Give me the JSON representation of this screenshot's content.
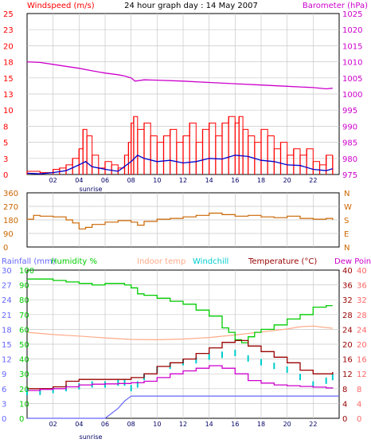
{
  "title": "24 hour graph day : 14 May 2007",
  "sunrise_label": "sunrise",
  "colors": {
    "wind_gust": "#ff0000",
    "wind_avg": "#0000cc",
    "barometer": "#cc00cc",
    "wind_dir": "#cc6600",
    "rain": "#6666ff",
    "humidity": "#00cc00",
    "indoor": "#ffaa88",
    "windchill": "#00cccc",
    "temperature": "#990000",
    "dewpoint": "#cc00cc"
  },
  "chart_data": [
    {
      "type": "line",
      "left_label": "Windspeed (m/s)",
      "right_label": "Barometer (hPa)",
      "left_ticks": [
        "25",
        "23",
        "20",
        "18",
        "15",
        "13",
        "10",
        "8",
        "5",
        "3",
        "0"
      ],
      "right_ticks": [
        "1025",
        "1020",
        "1015",
        "1010",
        "1005",
        "1000",
        "995",
        "990",
        "985",
        "980",
        "975"
      ],
      "x_ticks": [
        "02",
        "04",
        "06",
        "08",
        "10",
        "12",
        "14",
        "16",
        "18",
        "20",
        "22"
      ],
      "x_range": [
        0,
        24
      ],
      "ylim_left": [
        0,
        25
      ],
      "ylim_right": [
        975,
        1025
      ],
      "series": [
        {
          "name": "Wind gust",
          "axis": "left",
          "x": [
            0,
            1,
            2,
            2.5,
            3,
            3.5,
            4,
            4.3,
            4.6,
            5,
            5.5,
            6,
            6.5,
            7,
            7.5,
            7.8,
            8,
            8.2,
            8.5,
            9,
            9.5,
            10,
            10.5,
            11,
            11.5,
            12,
            12.5,
            13,
            13.5,
            14,
            14.5,
            15,
            15.5,
            16,
            16.3,
            16.6,
            17,
            17.5,
            18,
            18.5,
            19,
            19.5,
            20,
            20.5,
            21,
            21.5,
            22,
            22.5,
            23,
            23.5
          ],
          "values": [
            0.5,
            0.3,
            0.8,
            1,
            1.5,
            2.5,
            4,
            7,
            6,
            3,
            1,
            2,
            1.5,
            1,
            3,
            5,
            8,
            9,
            7,
            8,
            6,
            5,
            6,
            7,
            5,
            6,
            8,
            5,
            7,
            8,
            6,
            8,
            9,
            8,
            9,
            7,
            6,
            5,
            7,
            6,
            4,
            5,
            3,
            4,
            3,
            4,
            2,
            1.5,
            3,
            3
          ]
        },
        {
          "name": "Wind average",
          "axis": "left",
          "x": [
            0,
            1,
            2,
            3,
            4,
            4.5,
            5,
            6,
            7,
            8,
            8.5,
            9,
            10,
            11,
            12,
            13,
            14,
            15,
            16,
            17,
            18,
            19,
            20,
            21,
            22,
            23,
            23.5
          ],
          "values": [
            0.2,
            0.1,
            0.3,
            0.6,
            1.5,
            2,
            1.2,
            0.8,
            0.5,
            2,
            3,
            2.5,
            2,
            2.2,
            1.8,
            2,
            2.5,
            2.4,
            3,
            2.8,
            2.2,
            2,
            1.5,
            1.4,
            0.8,
            0.6,
            0.9
          ]
        },
        {
          "name": "Barometer",
          "axis": "right",
          "x": [
            0,
            1,
            2,
            3,
            4,
            5,
            6,
            7,
            7.5,
            8,
            8.3,
            9,
            10,
            12,
            14,
            16,
            18,
            20,
            22,
            23,
            23.5
          ],
          "values": [
            1010,
            1009.8,
            1009.2,
            1008.6,
            1008,
            1007.2,
            1006.5,
            1006,
            1005.6,
            1005,
            1004,
            1004.4,
            1004.3,
            1004,
            1003.6,
            1003.2,
            1002.8,
            1002.4,
            1002,
            1001.6,
            1001.8
          ]
        }
      ]
    },
    {
      "type": "line",
      "left_ticks": [
        "360",
        "270",
        "180",
        "90",
        "0"
      ],
      "right_ticks": [
        "N",
        "W",
        "S",
        "E",
        "N"
      ],
      "x_range": [
        0,
        24
      ],
      "ylim": [
        0,
        360
      ],
      "series": [
        {
          "name": "Wind direction",
          "x": [
            0,
            0.5,
            1,
            2,
            3,
            3.5,
            4,
            4.5,
            5,
            6,
            7,
            8,
            8.5,
            9,
            10,
            11,
            12,
            13,
            14,
            15,
            16,
            17,
            18,
            19,
            20,
            21,
            22,
            23,
            23.5
          ],
          "values": [
            185,
            210,
            205,
            200,
            180,
            160,
            120,
            130,
            150,
            165,
            175,
            165,
            145,
            170,
            185,
            190,
            200,
            210,
            225,
            215,
            205,
            210,
            200,
            195,
            205,
            190,
            185,
            190,
            180
          ]
        }
      ]
    },
    {
      "type": "line",
      "header_labels": {
        "rainfall": "Rainfall (mm)",
        "humidity": "Humidity %",
        "indoor": "Indoor temp",
        "windchill": "Windchill",
        "temperature": "Temperature (°C)",
        "dewpoint": "Dew Point"
      },
      "rain_ticks": [
        "30",
        "27",
        "24",
        "21",
        "18",
        "15",
        "12",
        "9",
        "6",
        "3",
        "0"
      ],
      "humidity_ticks": [
        "100",
        "90",
        "80",
        "70",
        "60",
        "50",
        "40",
        "30",
        "20",
        "10",
        "0"
      ],
      "temp_ticks_left": [
        "40",
        "36",
        "32",
        "28",
        "24",
        "20",
        "16",
        "12",
        "8",
        "4",
        "0"
      ],
      "temp_ticks_right": [
        "40",
        "36",
        "32",
        "28",
        "24",
        "20",
        "16",
        "12",
        "8",
        "4",
        "0"
      ],
      "x_ticks": [
        "02",
        "04",
        "06",
        "08",
        "10",
        "12",
        "14",
        "16",
        "18",
        "20",
        "22"
      ],
      "x_range": [
        0,
        24
      ],
      "ylim_rain": [
        0,
        30
      ],
      "ylim_humidity": [
        0,
        100
      ],
      "ylim_temp": [
        0,
        40
      ],
      "series": [
        {
          "name": "Rainfall",
          "axis": "rain",
          "x": [
            0,
            5,
            6,
            7,
            7.5,
            8,
            24
          ],
          "values": [
            0,
            0,
            0,
            2,
            3.5,
            4.5,
            4.5
          ]
        },
        {
          "name": "Humidity",
          "axis": "humidity",
          "x": [
            0,
            1,
            2,
            3,
            4,
            5,
            6,
            7,
            7.5,
            8,
            8.5,
            9,
            10,
            11,
            12,
            13,
            14,
            15,
            15.5,
            16,
            16.5,
            17,
            17.5,
            18,
            19,
            20,
            21,
            22,
            23,
            23.5
          ],
          "values": [
            94,
            94,
            93,
            92,
            91,
            90,
            91,
            91,
            90,
            88,
            84,
            83,
            81,
            79,
            77,
            73,
            69,
            61,
            58,
            53,
            51,
            55,
            58,
            60,
            63,
            67,
            70,
            75,
            76,
            76
          ]
        },
        {
          "name": "Indoor temp",
          "axis": "temp",
          "x": [
            0,
            2,
            4,
            6,
            8,
            10,
            12,
            14,
            16,
            18,
            20,
            21,
            22,
            23,
            23.5
          ],
          "values": [
            23.2,
            22.6,
            22.2,
            21.7,
            21.3,
            21.2,
            21.4,
            21.8,
            22.5,
            23.3,
            24.1,
            24.7,
            24.9,
            24.5,
            24.3
          ]
        },
        {
          "name": "Windchill",
          "axis": "temp",
          "x": [
            0,
            1,
            2,
            3,
            4,
            5,
            6,
            7,
            7.5,
            8,
            8.5,
            9,
            10,
            11,
            12,
            13,
            14,
            15,
            16,
            17,
            18,
            19,
            20,
            21,
            22,
            23,
            23.5
          ],
          "values": [
            8,
            8,
            8.5,
            9,
            9.5,
            10,
            10,
            10.5,
            10.5,
            9,
            10,
            12,
            14,
            15,
            16,
            16.5,
            17.5,
            18,
            18.5,
            17,
            16,
            15,
            14,
            12,
            10,
            11,
            12
          ]
        },
        {
          "name": "Temperature",
          "axis": "temp",
          "x": [
            0,
            1,
            2,
            3,
            4,
            5,
            6,
            7,
            8,
            9,
            10,
            11,
            12,
            13,
            14,
            15,
            16,
            17,
            18,
            19,
            20,
            21,
            22,
            23,
            23.5
          ],
          "values": [
            8,
            8,
            8.5,
            10,
            10.5,
            10.5,
            10.5,
            10.5,
            11,
            12,
            14,
            15,
            16,
            17.5,
            19,
            20.5,
            21,
            19.5,
            18,
            16.5,
            15,
            13,
            12,
            12,
            12.5
          ]
        },
        {
          "name": "Dew Point",
          "axis": "temp",
          "x": [
            0,
            1,
            2,
            3,
            4,
            5,
            6,
            7,
            8,
            9,
            10,
            11,
            12,
            13,
            14,
            15,
            16,
            17,
            18,
            19,
            20,
            21,
            22,
            23,
            23.5
          ],
          "values": [
            7.5,
            7.8,
            8,
            8.5,
            9,
            9.2,
            9.3,
            9.4,
            9.6,
            10,
            11,
            12,
            12.8,
            13.5,
            14.2,
            13.5,
            12,
            10.2,
            9.5,
            9,
            8.8,
            8.6,
            8.4,
            8.2,
            8.3
          ]
        }
      ]
    }
  ]
}
